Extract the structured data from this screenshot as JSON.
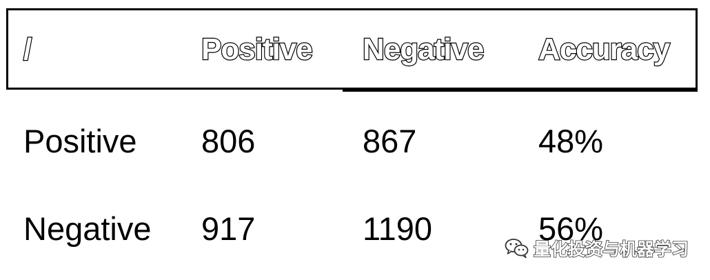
{
  "table": {
    "header": [
      "/",
      "Positive",
      "Negative",
      "Accuracy"
    ],
    "rows": [
      [
        "Positive",
        "806",
        "867",
        "48%"
      ],
      [
        "Negative",
        "917",
        "1190",
        "56%"
      ]
    ]
  },
  "watermark": {
    "icon": "wechat-icon",
    "text": "量化投资与机器学习"
  }
}
